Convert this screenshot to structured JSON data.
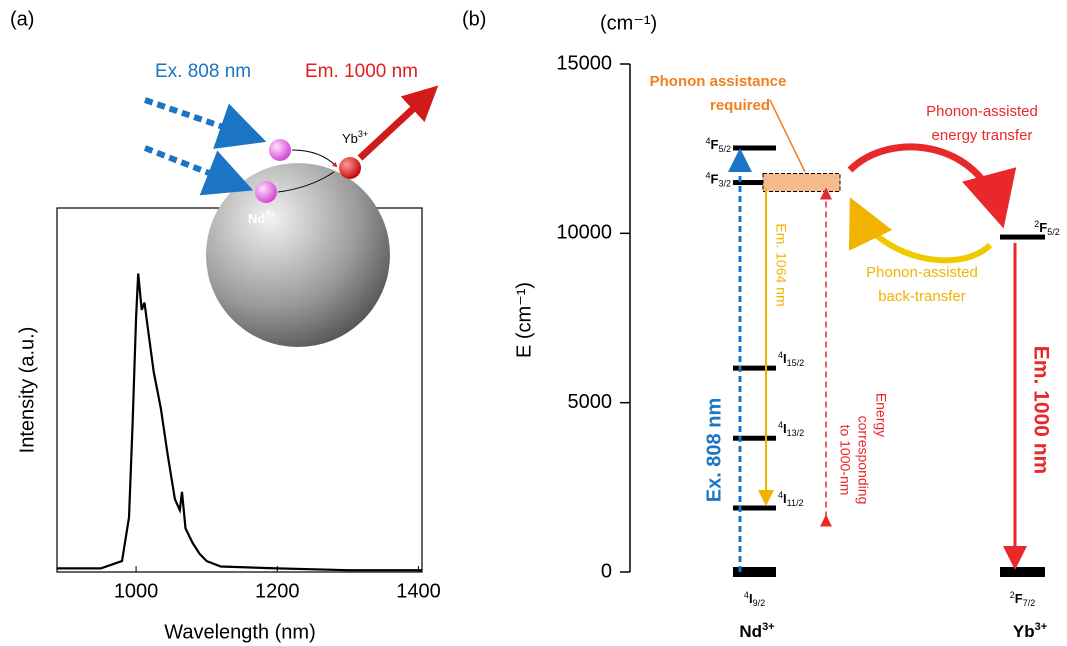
{
  "panel_labels": [
    "(a)",
    "(b)"
  ],
  "inset": {
    "excitation": "Ex. 808 nm",
    "emission": "Em. 1000 nm",
    "acceptor": {
      "base": "Yb",
      "sup": "3+"
    },
    "donor": {
      "base": "Nd",
      "sup": "3+"
    }
  },
  "chart_data": [
    {
      "type": "line",
      "xlabel": "Wavelength (nm)",
      "ylabel": "Intensity (a.u.)",
      "color": "#000000",
      "x": [
        888,
        950,
        980,
        990,
        995,
        1000,
        1003,
        1008,
        1012,
        1018,
        1025,
        1035,
        1045,
        1055,
        1062,
        1065,
        1070,
        1080,
        1090,
        1100,
        1120,
        1200,
        1300,
        1405
      ],
      "values": [
        0.01,
        0.01,
        0.03,
        0.15,
        0.4,
        0.7,
        0.82,
        0.72,
        0.74,
        0.65,
        0.55,
        0.45,
        0.32,
        0.2,
        0.17,
        0.22,
        0.12,
        0.08,
        0.05,
        0.03,
        0.015,
        0.01,
        0.005,
        0.005
      ],
      "xlim": [
        888,
        1405
      ],
      "xticks": [
        1000,
        1200,
        1400
      ],
      "ylim": [
        0,
        1
      ]
    },
    {
      "type": "energy-levels",
      "unit": "(cm⁻¹)",
      "ylabel": "E (cm⁻¹)",
      "ylim": [
        0,
        15000
      ],
      "yticks": [
        0,
        5000,
        10000,
        15000
      ],
      "ions": [
        {
          "name": {
            "base": "Nd",
            "sup": "3+"
          },
          "levels": [
            {
              "label": {
                "sup": "4",
                "term": "I",
                "sub": "9/2"
              },
              "value": 0
            },
            {
              "label": {
                "sup": "4",
                "term": "I",
                "sub": "11/2"
              },
              "value": 1890
            },
            {
              "label": {
                "sup": "4",
                "term": "I",
                "sub": "13/2"
              },
              "value": 3950
            },
            {
              "label": {
                "sup": "4",
                "term": "I",
                "sub": "15/2"
              },
              "value": 6020
            },
            {
              "label": {
                "sup": "4",
                "term": "F",
                "sub": "3/2"
              },
              "value": 11500
            },
            {
              "label": {
                "sup": "4",
                "term": "F",
                "sub": "5/2"
              },
              "value": 12520
            }
          ]
        },
        {
          "name": {
            "base": "Yb",
            "sup": "3+"
          },
          "levels": [
            {
              "label": {
                "sup": "2",
                "term": "F",
                "sub": "7/2"
              },
              "value": 0
            },
            {
              "label": {
                "sup": "2",
                "term": "F",
                "sub": "5/2"
              },
              "value": 9890
            }
          ]
        }
      ],
      "annotations": {
        "excitation": "Ex. 808 nm",
        "emission_nd": "Em. 1064 nm",
        "emission_yb": "Em. 1000 nm",
        "energy_gap": [
          "Energy",
          "corresponding",
          "to 1000-nm"
        ],
        "phonon_required": [
          "Phonon assistance",
          "required"
        ],
        "forward_transfer": [
          "Phonon-assisted",
          "energy transfer"
        ],
        "back_transfer": [
          "Phonon-assisted",
          "back-transfer"
        ]
      }
    }
  ]
}
